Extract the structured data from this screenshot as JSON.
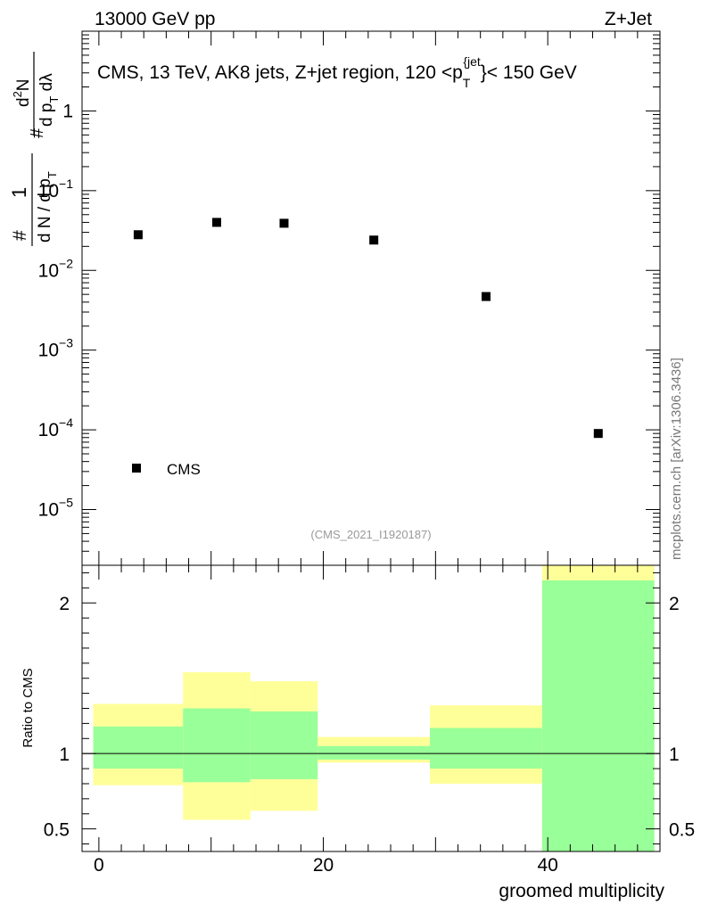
{
  "header": {
    "energy_label": "13000 GeV pp",
    "process_label": "Z+Jet",
    "watermark": "mcplots.cern.ch [arXiv:1306.3436]",
    "analysis_id": "(CMS_2021_I1920187)"
  },
  "chart_data": [
    {
      "type": "scatter",
      "panel": "main",
      "title": "CMS, 13 TeV, AK8 jets, Z+jet region, 120 <p_T^{jet}< 150 GeV",
      "title_parts": {
        "pre": "CMS, 13 TeV, AK8 jets, Z+jet region, 120 <p",
        "sub": "T",
        "sup": "{jet",
        "post": "}< 150 GeV"
      },
      "ylabel": "1/(dN / dp_T) d²N/(dp_T dλ)",
      "ylabel_parts": {
        "hash": "#",
        "one": "1",
        "den_pre": "d N / d p",
        "den_sub": "T",
        "num_pre": "d",
        "num_sup": "2",
        "num_post": "N",
        "den2_pre": "d p",
        "den2_sub": "T",
        "den2_post": " dλ"
      },
      "yscale": "log",
      "ylim": [
        2e-06,
        10
      ],
      "xlim": [
        -1.5,
        50
      ],
      "yticks": [
        {
          "value": 1,
          "base": "1",
          "exp": ""
        },
        {
          "value": 0.1,
          "base": "10",
          "exp": "−1"
        },
        {
          "value": 0.01,
          "base": "10",
          "exp": "−2"
        },
        {
          "value": 0.001,
          "base": "10",
          "exp": "−3"
        },
        {
          "value": 0.0001,
          "base": "10",
          "exp": "−4"
        },
        {
          "value": 1e-05,
          "base": "10",
          "exp": "−5"
        }
      ],
      "series": [
        {
          "name": "CMS",
          "marker": "square",
          "color": "#000000",
          "points": [
            {
              "x": 3.5,
              "y": 0.028
            },
            {
              "x": 10.5,
              "y": 0.04
            },
            {
              "x": 16.5,
              "y": 0.039
            },
            {
              "x": 24.5,
              "y": 0.024
            },
            {
              "x": 34.5,
              "y": 0.0047
            },
            {
              "x": 44.5,
              "y": 9e-05
            }
          ]
        }
      ],
      "legend": {
        "entries": [
          "CMS"
        ],
        "placement": "bottom-left"
      }
    },
    {
      "type": "area",
      "panel": "ratio",
      "ylabel": "Ratio to CMS",
      "xlabel": "groomed multiplicity",
      "xlim": [
        -1.5,
        50
      ],
      "ylim": [
        0.35,
        2.25
      ],
      "yticks": [
        {
          "value": 2,
          "label": "2"
        },
        {
          "value": 1,
          "label": "1"
        },
        {
          "value": 0.5,
          "label": "0.5"
        }
      ],
      "xticks": [
        {
          "value": 0,
          "label": "0"
        },
        {
          "value": 20,
          "label": "20"
        },
        {
          "value": 40,
          "label": "40"
        }
      ],
      "reference_line": 1,
      "colors": {
        "outer": "#ffff99",
        "inner": "#99ff99",
        "line": "#000000"
      },
      "bands": [
        {
          "x0": -0.5,
          "x1": 7.5,
          "outer_lo": 0.79,
          "outer_hi": 1.33,
          "inner_lo": 0.9,
          "inner_hi": 1.18
        },
        {
          "x0": 7.5,
          "x1": 13.5,
          "outer_lo": 0.56,
          "outer_hi": 1.54,
          "inner_lo": 0.81,
          "inner_hi": 1.3
        },
        {
          "x0": 13.5,
          "x1": 19.5,
          "outer_lo": 0.62,
          "outer_hi": 1.48,
          "inner_lo": 0.83,
          "inner_hi": 1.28
        },
        {
          "x0": 19.5,
          "x1": 29.5,
          "outer_lo": 0.94,
          "outer_hi": 1.11,
          "inner_lo": 0.96,
          "inner_hi": 1.05
        },
        {
          "x0": 29.5,
          "x1": 39.5,
          "outer_lo": 0.8,
          "outer_hi": 1.32,
          "inner_lo": 0.9,
          "inner_hi": 1.17
        },
        {
          "x0": 39.5,
          "x1": 49.5,
          "outer_lo": 0.35,
          "outer_hi": 2.25,
          "inner_lo": 0.35,
          "inner_hi": 2.15
        }
      ]
    }
  ]
}
